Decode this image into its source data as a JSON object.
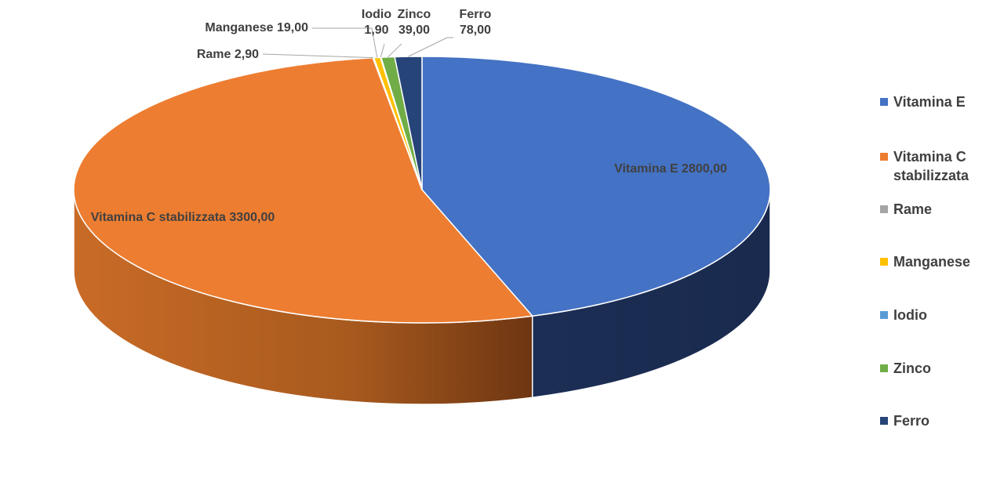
{
  "chart_data": {
    "type": "pie",
    "three_d": true,
    "slices": [
      {
        "name": "Vitamina E",
        "value": 2800.0,
        "label": "Vitamina E 2800,00",
        "color": "#4472C4",
        "side_color": "#1F3462"
      },
      {
        "name": "Vitamina C stabilizzata",
        "value": 3300.0,
        "label": "Vitamina C stabilizzata 3300,00",
        "color": "#ED7D31",
        "side_color": "#B8601F"
      },
      {
        "name": "Rame",
        "value": 2.9,
        "label": "Rame 2,90",
        "color": "#A5A5A5",
        "side_color": "#7A7A7A"
      },
      {
        "name": "Manganese",
        "value": 19.0,
        "label": "Manganese 19,00",
        "color": "#FFC000",
        "side_color": "#B88A00"
      },
      {
        "name": "Iodio",
        "value": 1.9,
        "label_lines": [
          "Iodio",
          "1,90"
        ],
        "color": "#5B9BD5",
        "side_color": "#3A6D9C"
      },
      {
        "name": "Zinco",
        "value": 39.0,
        "label_lines": [
          "Zinco",
          "39,00"
        ],
        "color": "#70AD47",
        "side_color": "#4D7A30"
      },
      {
        "name": "Ferro",
        "value": 78.0,
        "label_lines": [
          "Ferro",
          "78,00"
        ],
        "color": "#264478",
        "side_color": "#16284A"
      }
    ],
    "legend_position": "right"
  },
  "legend": {
    "items": [
      {
        "name": "Vitamina E",
        "lines": [
          "Vitamina E"
        ],
        "color": "#4472C4"
      },
      {
        "name": "Vitamina C stabilizzata",
        "lines": [
          "Vitamina C",
          "stabilizzata"
        ],
        "color": "#ED7D31"
      },
      {
        "name": "Rame",
        "lines": [
          "Rame"
        ],
        "color": "#A5A5A5"
      },
      {
        "name": "Manganese",
        "lines": [
          "Manganese"
        ],
        "color": "#FFC000"
      },
      {
        "name": "Iodio",
        "lines": [
          "Iodio"
        ],
        "color": "#5B9BD5"
      },
      {
        "name": "Zinco",
        "lines": [
          "Zinco"
        ],
        "color": "#70AD47"
      },
      {
        "name": "Ferro",
        "lines": [
          "Ferro"
        ],
        "color": "#264478"
      }
    ]
  }
}
